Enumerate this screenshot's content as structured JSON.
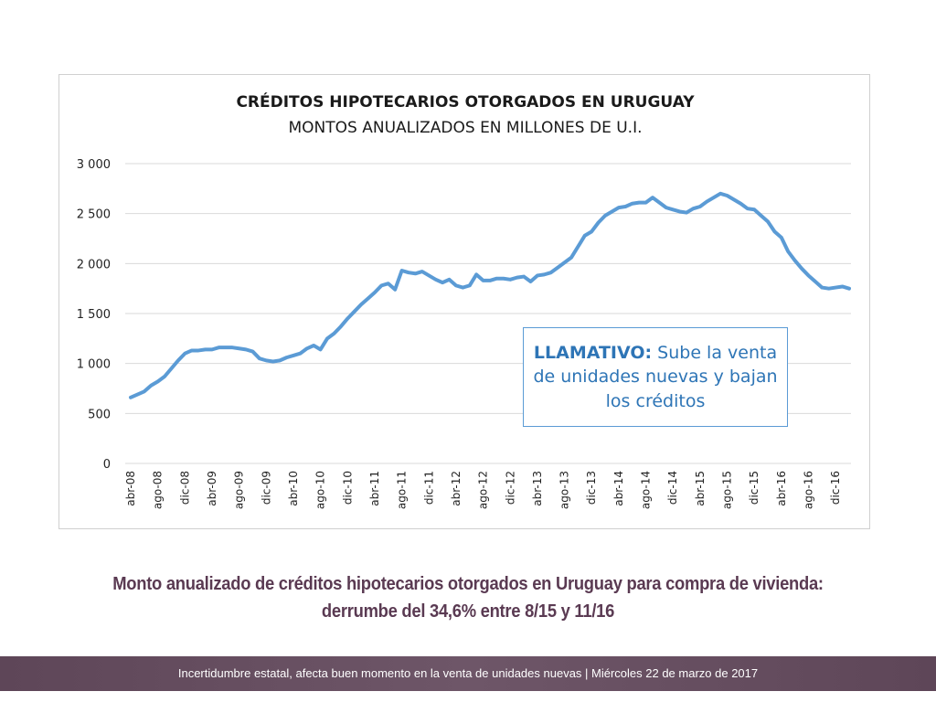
{
  "chart_data": {
    "type": "line",
    "title": "CRÉDITOS HIPOTECARIOS OTORGADOS EN URUGUAY",
    "subtitle": "MONTOS ANUALIZADOS EN MILLONES DE U.I.",
    "ylim": [
      0,
      3000
    ],
    "yticks": [
      0,
      500,
      1000,
      1500,
      2000,
      2500,
      3000
    ],
    "ytick_labels": [
      "0",
      "500",
      "1 000",
      "1 500",
      "2 000",
      "2 500",
      "3 000"
    ],
    "xtick_labels": [
      "abr-08",
      "ago-08",
      "dic-08",
      "abr-09",
      "ago-09",
      "dic-09",
      "abr-10",
      "ago-10",
      "dic-10",
      "abr-11",
      "ago-11",
      "dic-11",
      "abr-12",
      "ago-12",
      "dic-12",
      "abr-13",
      "ago-13",
      "dic-13",
      "abr-14",
      "ago-14",
      "dic-14",
      "abr-15",
      "ago-15",
      "dic-15",
      "abr-16",
      "ago-16",
      "dic-16"
    ],
    "x_start": "abr-08",
    "x_end": "ene-17",
    "grid": true,
    "series": [
      {
        "color": "#5b9bd5",
        "values": [
          660,
          690,
          720,
          780,
          820,
          870,
          950,
          1030,
          1100,
          1130,
          1130,
          1140,
          1140,
          1160,
          1160,
          1160,
          1150,
          1140,
          1120,
          1050,
          1030,
          1020,
          1030,
          1060,
          1080,
          1100,
          1150,
          1180,
          1140,
          1250,
          1300,
          1370,
          1450,
          1520,
          1590,
          1650,
          1710,
          1780,
          1800,
          1740,
          1930,
          1910,
          1900,
          1920,
          1880,
          1840,
          1810,
          1840,
          1780,
          1760,
          1780,
          1890,
          1830,
          1830,
          1850,
          1850,
          1840,
          1860,
          1870,
          1820,
          1880,
          1890,
          1910,
          1960,
          2010,
          2060,
          2170,
          2280,
          2320,
          2410,
          2480,
          2520,
          2560,
          2570,
          2600,
          2610,
          2610,
          2660,
          2610,
          2560,
          2540,
          2520,
          2510,
          2550,
          2570,
          2620,
          2660,
          2700,
          2680,
          2640,
          2600,
          2550,
          2540,
          2480,
          2420,
          2320,
          2260,
          2120,
          2030,
          1950,
          1880,
          1820,
          1760,
          1750,
          1760,
          1770,
          1750
        ]
      }
    ]
  },
  "callout": {
    "bold": "LLAMATIVO:",
    "text": " Sube la venta de unidades nuevas y bajan los créditos"
  },
  "caption": {
    "line1": "Monto anualizado de créditos hipotecarios otorgados en Uruguay para compra de vivienda:",
    "line2": "derrumbe del 34,6% entre 8/15 y 11/16"
  },
  "footer": {
    "text": "Incertidumbre estatal, afecta buen momento en la venta de unidades nuevas | Miércoles 22 de marzo de 2017"
  },
  "colors": {
    "series": "#5b9bd5",
    "caption": "#5a3a52",
    "footer_bg": "#5e4658"
  }
}
